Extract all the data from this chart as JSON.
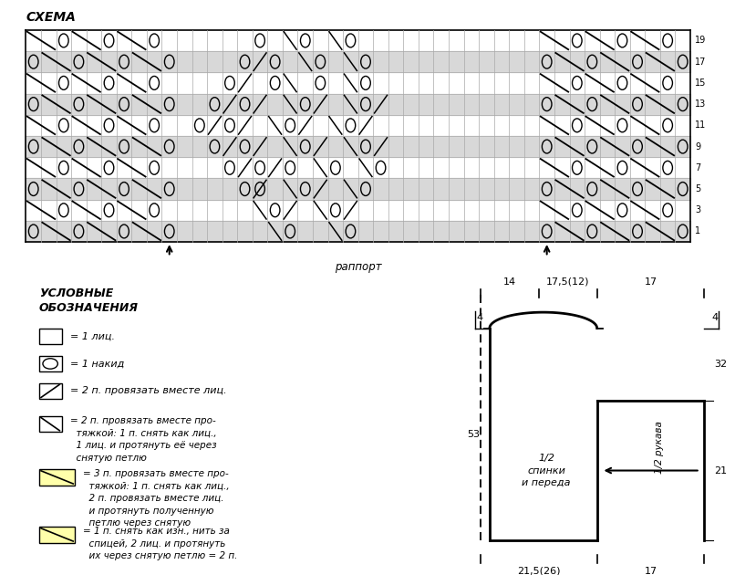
{
  "title": "СХЕМА",
  "grid_rows": 10,
  "grid_cols": 44,
  "row_labels": [
    1,
    3,
    5,
    7,
    9,
    11,
    13,
    15,
    17,
    19
  ],
  "rapport_label": "раппорт",
  "legend_title": "УСЛОВНЫЕ\nОБОЗНАЧЕНИЯ",
  "background_color": "#ffffff",
  "grid_color": "#aaaaaa",
  "line_color": "#000000",
  "schematic": {
    "top_labels": [
      "14",
      "17,5(12)",
      "17"
    ],
    "left_top": "4",
    "left_mid": "53",
    "right_top": "4",
    "right_bot": "32",
    "sleeve_vert": "21",
    "bottom_labels": [
      "21,5(26)",
      "17"
    ],
    "sleeve_label": "1/2 рукава",
    "body_label": "1/2\nспинки\nи переда"
  }
}
